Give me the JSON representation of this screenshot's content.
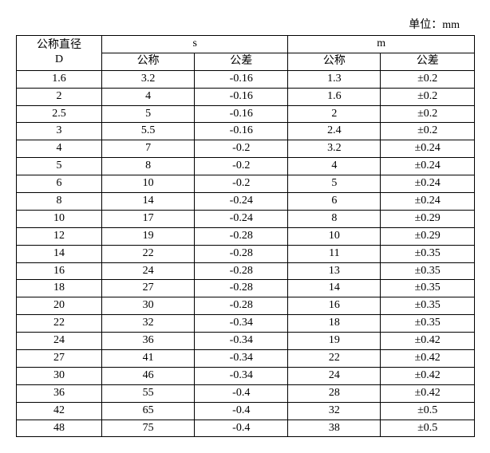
{
  "unit_label": "单位：mm",
  "headers": {
    "d_label_1": "公称直径",
    "d_label_2": "D",
    "s_label": "s",
    "m_label": "m",
    "nominal": "公称",
    "tolerance": "公差"
  },
  "rows": [
    {
      "d": "1.6",
      "s_nom": "3.2",
      "s_tol": "-0.16",
      "m_nom": "1.3",
      "m_tol": "±0.2"
    },
    {
      "d": "2",
      "s_nom": "4",
      "s_tol": "-0.16",
      "m_nom": "1.6",
      "m_tol": "±0.2"
    },
    {
      "d": "2.5",
      "s_nom": "5",
      "s_tol": "-0.16",
      "m_nom": "2",
      "m_tol": "±0.2"
    },
    {
      "d": "3",
      "s_nom": "5.5",
      "s_tol": "-0.16",
      "m_nom": "2.4",
      "m_tol": "±0.2"
    },
    {
      "d": "4",
      "s_nom": "7",
      "s_tol": "-0.2",
      "m_nom": "3.2",
      "m_tol": "±0.24"
    },
    {
      "d": "5",
      "s_nom": "8",
      "s_tol": "-0.2",
      "m_nom": "4",
      "m_tol": "±0.24"
    },
    {
      "d": "6",
      "s_nom": "10",
      "s_tol": "-0.2",
      "m_nom": "5",
      "m_tol": "±0.24"
    },
    {
      "d": "8",
      "s_nom": "14",
      "s_tol": "-0.24",
      "m_nom": "6",
      "m_tol": "±0.24"
    },
    {
      "d": "10",
      "s_nom": "17",
      "s_tol": "-0.24",
      "m_nom": "8",
      "m_tol": "±0.29"
    },
    {
      "d": "12",
      "s_nom": "19",
      "s_tol": "-0.28",
      "m_nom": "10",
      "m_tol": "±0.29"
    },
    {
      "d": "14",
      "s_nom": "22",
      "s_tol": "-0.28",
      "m_nom": "11",
      "m_tol": "±0.35"
    },
    {
      "d": "16",
      "s_nom": "24",
      "s_tol": "-0.28",
      "m_nom": "13",
      "m_tol": "±0.35"
    },
    {
      "d": "18",
      "s_nom": "27",
      "s_tol": "-0.28",
      "m_nom": "14",
      "m_tol": "±0.35"
    },
    {
      "d": "20",
      "s_nom": "30",
      "s_tol": "-0.28",
      "m_nom": "16",
      "m_tol": "±0.35"
    },
    {
      "d": "22",
      "s_nom": "32",
      "s_tol": "-0.34",
      "m_nom": "18",
      "m_tol": "±0.35"
    },
    {
      "d": "24",
      "s_nom": "36",
      "s_tol": "-0.34",
      "m_nom": "19",
      "m_tol": "±0.42"
    },
    {
      "d": "27",
      "s_nom": "41",
      "s_tol": "-0.34",
      "m_nom": "22",
      "m_tol": "±0.42"
    },
    {
      "d": "30",
      "s_nom": "46",
      "s_tol": "-0.34",
      "m_nom": "24",
      "m_tol": "±0.42"
    },
    {
      "d": "36",
      "s_nom": "55",
      "s_tol": "-0.4",
      "m_nom": "28",
      "m_tol": "±0.42"
    },
    {
      "d": "42",
      "s_nom": "65",
      "s_tol": "-0.4",
      "m_nom": "32",
      "m_tol": "±0.5"
    },
    {
      "d": "48",
      "s_nom": "75",
      "s_tol": "-0.4",
      "m_nom": "38",
      "m_tol": "±0.5"
    }
  ]
}
